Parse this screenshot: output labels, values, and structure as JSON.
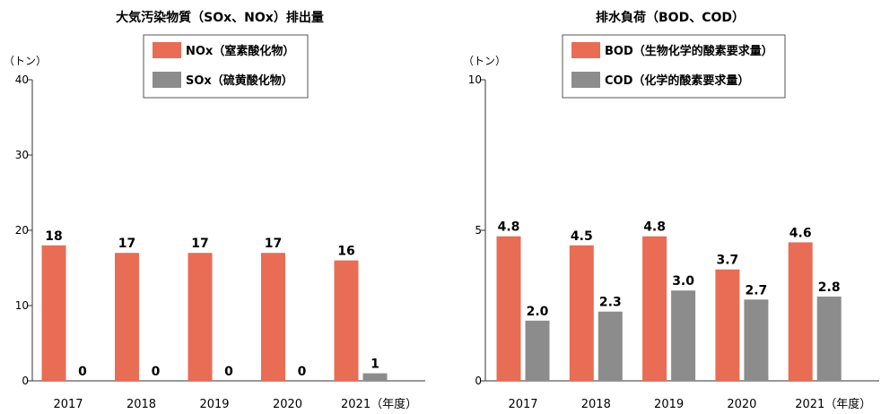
{
  "colors": {
    "primary": "#E96C55",
    "secondary": "#8C8C8C"
  },
  "chart_data": [
    {
      "type": "bar",
      "title": "大気汚染物質（SOx、NOx）排出量",
      "ylabel": "（トン）",
      "xlabel_suffix": "（年度）",
      "categories": [
        "2017",
        "2018",
        "2019",
        "2020",
        "2021"
      ],
      "ylim": [
        0,
        40
      ],
      "yticks": [
        "0",
        "10",
        "20",
        "30",
        "40"
      ],
      "legend_position": "top-right",
      "series": [
        {
          "name": "NOx（窒素酸化物）",
          "values": [
            18,
            17,
            17,
            17,
            16
          ],
          "labels": [
            "18",
            "17",
            "17",
            "17",
            "16"
          ]
        },
        {
          "name": "SOx（硫黄酸化物）",
          "values": [
            0,
            0,
            0,
            0,
            1
          ],
          "labels": [
            "0",
            "0",
            "0",
            "0",
            "1"
          ]
        }
      ]
    },
    {
      "type": "bar",
      "title": "排水負荷（BOD、COD）",
      "ylabel": "（トン）",
      "xlabel_suffix": "（年度）",
      "categories": [
        "2017",
        "2018",
        "2019",
        "2020",
        "2021"
      ],
      "ylim": [
        0,
        10
      ],
      "yticks": [
        "0",
        "5",
        "10"
      ],
      "legend_position": "top-right",
      "series": [
        {
          "name": "BOD（生物化学的酸素要求量）",
          "values": [
            4.8,
            4.5,
            4.8,
            3.7,
            4.6
          ],
          "labels": [
            "4.8",
            "4.5",
            "4.8",
            "3.7",
            "4.6"
          ]
        },
        {
          "name": "COD（化学的酸素要求量）",
          "values": [
            2.0,
            2.3,
            3.0,
            2.7,
            2.8
          ],
          "labels": [
            "2.0",
            "2.3",
            "3.0",
            "2.7",
            "2.8"
          ]
        }
      ]
    }
  ]
}
